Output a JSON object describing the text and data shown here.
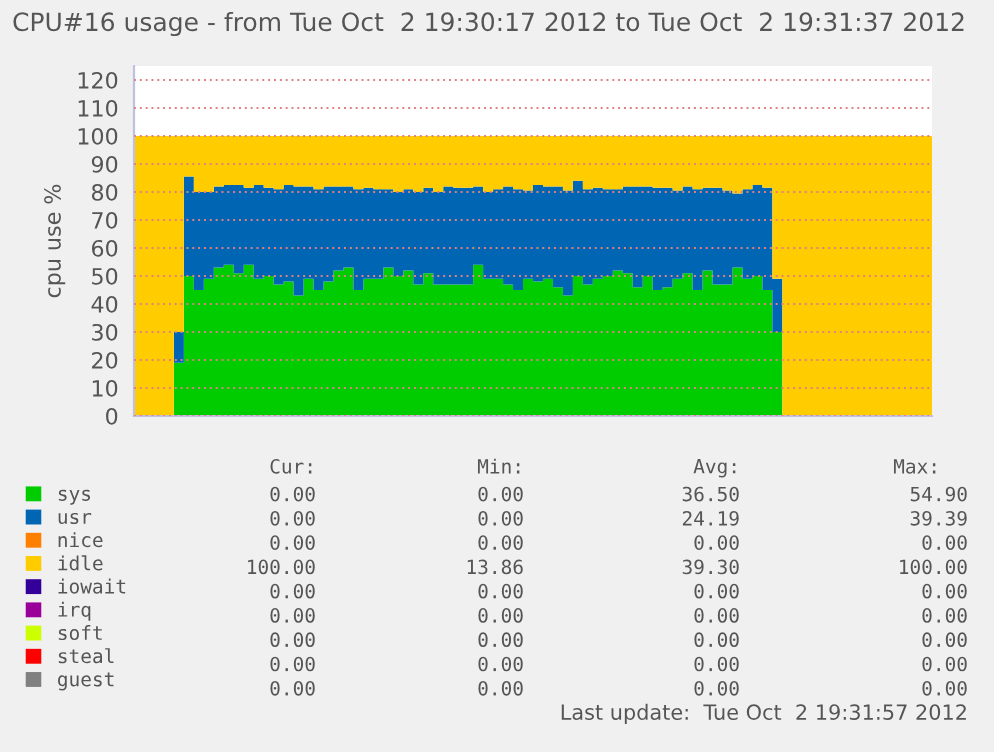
{
  "chart_data": {
    "type": "area",
    "stacked": true,
    "title": "CPU#16 usage - from Tue Oct  2 19:30:17 2012 to Tue Oct  2 19:31:37 2012",
    "ylabel": "cpu use %",
    "categories": [
      null,
      null,
      null,
      null,
      null,
      null,
      null,
      null,
      null,
      null,
      null,
      null,
      null,
      null,
      null,
      null,
      null,
      null,
      null,
      null,
      null,
      null,
      null,
      null,
      null,
      null,
      null,
      null,
      null,
      null,
      null,
      null,
      null,
      null,
      null,
      null,
      null,
      null,
      null,
      null,
      null,
      null,
      null,
      null,
      null,
      null,
      null,
      null,
      null,
      null,
      null,
      null,
      null,
      null,
      null,
      null,
      null,
      null,
      null,
      null,
      null,
      null,
      null,
      null,
      null,
      null,
      null,
      null,
      null,
      null,
      null,
      null,
      null,
      null,
      null,
      null,
      null,
      null,
      null,
      null
    ],
    "series": [
      {
        "name": "sys",
        "color": "#00cc00",
        "values": [
          0,
          0,
          0,
          0,
          19,
          50,
          45,
          49,
          53,
          54,
          51,
          54,
          49,
          50,
          47,
          48,
          43,
          49,
          45,
          48,
          52,
          53,
          45,
          49,
          49,
          53,
          50,
          52,
          47,
          51,
          47,
          47,
          47,
          47,
          54,
          49,
          49,
          47,
          45,
          49,
          48,
          49,
          46,
          43,
          50,
          47,
          49,
          50,
          52,
          51,
          46,
          50,
          45,
          46,
          49,
          51,
          45,
          52,
          47,
          47,
          53,
          49,
          50,
          45,
          30,
          0,
          0,
          0,
          0,
          0,
          0,
          0,
          0,
          0,
          0,
          0,
          0,
          0,
          0,
          0
        ]
      },
      {
        "name": "usr",
        "color": "#0066b3",
        "values": [
          0,
          0,
          0,
          0,
          11,
          35.5,
          35,
          31,
          29,
          28.5,
          31.5,
          27.5,
          33.5,
          31.5,
          34,
          34.5,
          39,
          33,
          36,
          34,
          30,
          29,
          36,
          32.5,
          32,
          28,
          30,
          29,
          33,
          30.5,
          33,
          35,
          34.5,
          34.5,
          28,
          31,
          32,
          35,
          36,
          31.5,
          34.5,
          33,
          36,
          37.5,
          34,
          34,
          32.5,
          31,
          29,
          31,
          36,
          32,
          36.5,
          35.5,
          31.5,
          31,
          36,
          29.5,
          34.5,
          33.5,
          26.5,
          32,
          32.5,
          36.5,
          19,
          0,
          0,
          0,
          0,
          0,
          0,
          0,
          0,
          0,
          0,
          0,
          0,
          0,
          0,
          0
        ]
      },
      {
        "name": "nice",
        "color": "#ff8000",
        "values": [
          null,
          null,
          null,
          null,
          null,
          null,
          null,
          null,
          null,
          null,
          null,
          null,
          null,
          null,
          null,
          null,
          null,
          null,
          null,
          null,
          null,
          null,
          null,
          null,
          null,
          null,
          null,
          null,
          null,
          null,
          null,
          null,
          null,
          null,
          null,
          null,
          null,
          null,
          null,
          null,
          null,
          null,
          null,
          null,
          null,
          null,
          null,
          null,
          null,
          null,
          null,
          null,
          null,
          null,
          null,
          null,
          null,
          null,
          null,
          null,
          null,
          null,
          null,
          null,
          null,
          null,
          null,
          null,
          null,
          null,
          null,
          null,
          null,
          null,
          null,
          null,
          null,
          null,
          null,
          null
        ]
      },
      {
        "name": "idle",
        "color": "#ffcc00",
        "values": [
          100,
          100,
          100,
          100,
          70,
          14.5,
          20,
          20,
          18,
          17.5,
          17.5,
          18.5,
          17.5,
          18.5,
          19,
          17.5,
          18,
          18,
          19,
          18,
          18,
          18,
          19,
          18.5,
          19,
          19,
          20,
          19,
          20,
          18.5,
          20,
          18,
          18.5,
          18.5,
          18,
          20,
          19,
          18,
          19,
          19.5,
          17.5,
          18,
          18,
          19.5,
          16,
          19,
          18.5,
          19,
          19,
          18,
          18,
          18,
          18.5,
          18.5,
          19.5,
          18,
          19,
          18.5,
          18.5,
          19.5,
          20.5,
          19,
          17.5,
          18.5,
          51,
          100,
          100,
          100,
          100,
          100,
          100,
          100,
          100,
          100,
          100,
          100,
          100,
          100,
          100,
          100
        ]
      },
      {
        "name": "iowait",
        "color": "#330099",
        "values": [
          null,
          null,
          null,
          null,
          null,
          null,
          null,
          null,
          null,
          null,
          null,
          null,
          null,
          null,
          null,
          null,
          null,
          null,
          null,
          null,
          null,
          null,
          null,
          null,
          null,
          null,
          null,
          null,
          null,
          null,
          null,
          null,
          null,
          null,
          null,
          null,
          null,
          null,
          null,
          null,
          null,
          null,
          null,
          null,
          null,
          null,
          null,
          null,
          null,
          null,
          null,
          null,
          null,
          null,
          null,
          null,
          null,
          null,
          null,
          null,
          null,
          null,
          null,
          null,
          null,
          null,
          null,
          null,
          null,
          null,
          null,
          null,
          null,
          null,
          null,
          null,
          null,
          null,
          null,
          null
        ]
      },
      {
        "name": "irq",
        "color": "#990099",
        "values": [
          null,
          null,
          null,
          null,
          null,
          null,
          null,
          null,
          null,
          null,
          null,
          null,
          null,
          null,
          null,
          null,
          null,
          null,
          null,
          null,
          null,
          null,
          null,
          null,
          null,
          null,
          null,
          null,
          null,
          null,
          null,
          null,
          null,
          null,
          null,
          null,
          null,
          null,
          null,
          null,
          null,
          null,
          null,
          null,
          null,
          null,
          null,
          null,
          null,
          null,
          null,
          null,
          null,
          null,
          null,
          null,
          null,
          null,
          null,
          null,
          null,
          null,
          null,
          null,
          null,
          null,
          null,
          null,
          null,
          null,
          null,
          null,
          null,
          null,
          null,
          null,
          null,
          null,
          null,
          null
        ]
      },
      {
        "name": "soft",
        "color": "#ccff00",
        "values": [
          null,
          null,
          null,
          null,
          null,
          null,
          null,
          null,
          null,
          null,
          null,
          null,
          null,
          null,
          null,
          null,
          null,
          null,
          null,
          null,
          null,
          null,
          null,
          null,
          null,
          null,
          null,
          null,
          null,
          null,
          null,
          null,
          null,
          null,
          null,
          null,
          null,
          null,
          null,
          null,
          null,
          null,
          null,
          null,
          null,
          null,
          null,
          null,
          null,
          null,
          null,
          null,
          null,
          null,
          null,
          null,
          null,
          null,
          null,
          null,
          null,
          null,
          null,
          null,
          null,
          null,
          null,
          null,
          null,
          null,
          null,
          null,
          null,
          null,
          null,
          null,
          null,
          null,
          null,
          null
        ]
      },
      {
        "name": "steal",
        "color": "#ff0000",
        "values": [
          null,
          null,
          null,
          null,
          null,
          null,
          null,
          null,
          null,
          null,
          null,
          null,
          null,
          null,
          null,
          null,
          null,
          null,
          null,
          null,
          null,
          null,
          null,
          null,
          null,
          null,
          null,
          null,
          null,
          null,
          null,
          null,
          null,
          null,
          null,
          null,
          null,
          null,
          null,
          null,
          null,
          null,
          null,
          null,
          null,
          null,
          null,
          null,
          null,
          null,
          null,
          null,
          null,
          null,
          null,
          null,
          null,
          null,
          null,
          null,
          null,
          null,
          null,
          null,
          null,
          null,
          null,
          null,
          null,
          null,
          null,
          null,
          null,
          null,
          null,
          null,
          null,
          null,
          null,
          null
        ]
      },
      {
        "name": "guest",
        "color": "#808080",
        "values": [
          null,
          null,
          null,
          null,
          null,
          null,
          null,
          null,
          null,
          null,
          null,
          null,
          null,
          null,
          null,
          null,
          null,
          null,
          null,
          null,
          null,
          null,
          null,
          null,
          null,
          null,
          null,
          null,
          null,
          null,
          null,
          null,
          null,
          null,
          null,
          null,
          null,
          null,
          null,
          null,
          null,
          null,
          null,
          null,
          null,
          null,
          null,
          null,
          null,
          null,
          null,
          null,
          null,
          null,
          null,
          null,
          null,
          null,
          null,
          null,
          null,
          null,
          null,
          null,
          null,
          null,
          null,
          null,
          null,
          null,
          null,
          null,
          null,
          null,
          null,
          null,
          null,
          null,
          null,
          null
        ]
      }
    ],
    "ylim": [
      0,
      125
    ],
    "yticks": [
      0,
      10,
      20,
      30,
      40,
      50,
      60,
      70,
      80,
      90,
      100,
      110,
      120
    ],
    "grid": "y",
    "legend": "bottom",
    "annotations": [
      "Cur:",
      "Min:",
      "Avg:",
      "Max:",
      "0.00",
      "0.00",
      "36.50",
      "54.90",
      "0.00",
      "0.00",
      "24.19",
      "39.39",
      "0.00",
      "0.00",
      "0.00",
      "0.00",
      "100.00",
      "13.86",
      "39.30",
      "100.00",
      "0.00",
      "0.00",
      "0.00",
      "0.00",
      "0.00",
      "0.00",
      "0.00",
      "0.00",
      "0.00",
      "0.00",
      "0.00",
      "0.00",
      "0.00",
      "0.00",
      "0.00",
      "0.00",
      "0.00",
      "0.00",
      "0.00",
      "0.00",
      "Last update:  Tue Oct  2 19:31:57 2012"
    ]
  }
}
